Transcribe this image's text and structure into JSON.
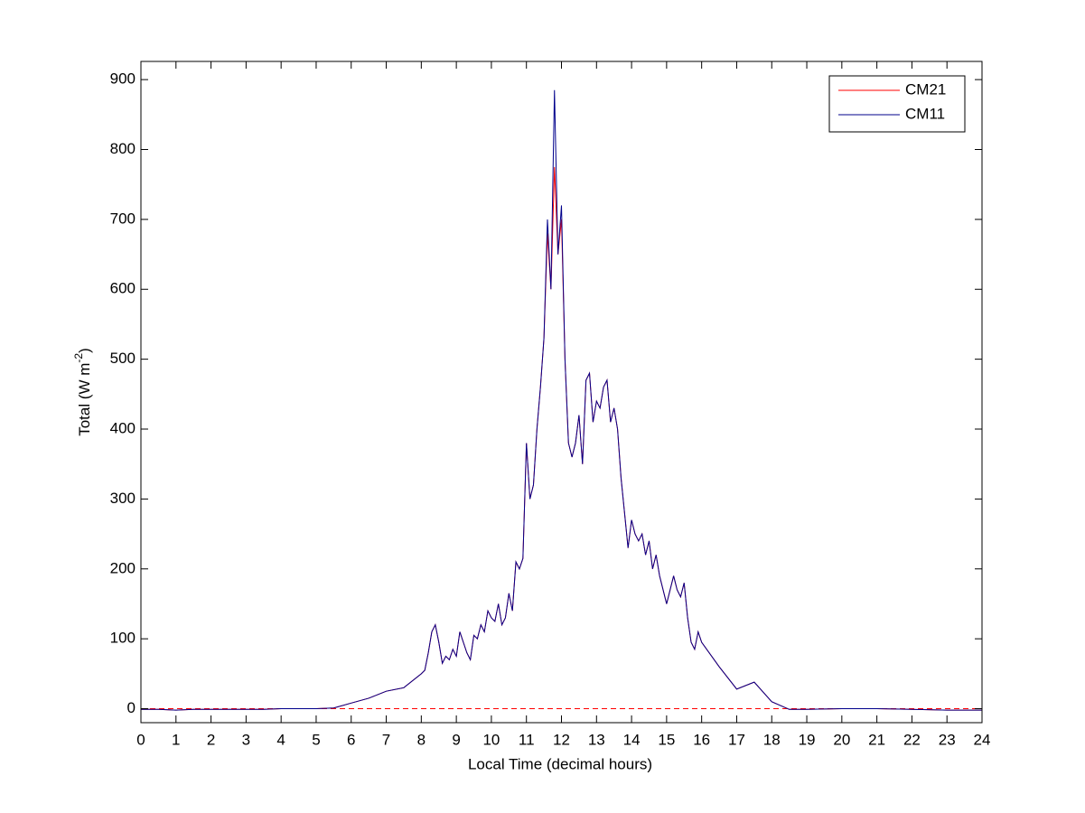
{
  "chart_data": {
    "type": "line",
    "xlabel": "Local Time (decimal hours)",
    "ylabel": [
      "Total (W m",
      "-2",
      ")"
    ],
    "x": [
      0,
      0.5,
      1,
      1.5,
      2,
      2.5,
      3,
      3.5,
      4,
      4.5,
      5,
      5.5,
      6,
      6.5,
      7,
      7.5,
      8,
      8.1,
      8.2,
      8.3,
      8.4,
      8.5,
      8.6,
      8.7,
      8.8,
      8.9,
      9,
      9.1,
      9.2,
      9.3,
      9.4,
      9.5,
      9.6,
      9.7,
      9.8,
      9.9,
      10,
      10.1,
      10.2,
      10.3,
      10.4,
      10.5,
      10.6,
      10.7,
      10.8,
      10.9,
      11,
      11.1,
      11.2,
      11.3,
      11.4,
      11.5,
      11.6,
      11.7,
      11.8,
      11.9,
      12,
      12.1,
      12.2,
      12.3,
      12.4,
      12.5,
      12.6,
      12.7,
      12.8,
      12.9,
      13,
      13.1,
      13.2,
      13.3,
      13.4,
      13.5,
      13.6,
      13.7,
      13.8,
      13.9,
      14,
      14.1,
      14.2,
      14.3,
      14.4,
      14.5,
      14.6,
      14.7,
      14.8,
      14.9,
      15,
      15.1,
      15.2,
      15.3,
      15.4,
      15.5,
      15.6,
      15.7,
      15.8,
      15.9,
      16,
      16.5,
      17,
      17.5,
      18,
      18.5,
      19,
      20,
      21,
      22,
      23,
      24
    ],
    "series": [
      {
        "name": "CM21",
        "color": "#ff0000",
        "values": [
          -1,
          -1,
          -2,
          -1,
          -1,
          -1,
          -1,
          -1,
          0,
          0,
          0,
          1,
          8,
          15,
          25,
          30,
          50,
          55,
          80,
          110,
          120,
          95,
          65,
          75,
          70,
          85,
          75,
          110,
          95,
          80,
          70,
          105,
          100,
          120,
          110,
          140,
          130,
          125,
          150,
          120,
          130,
          165,
          140,
          210,
          200,
          215,
          380,
          300,
          320,
          400,
          460,
          530,
          680,
          600,
          775,
          650,
          700,
          500,
          380,
          360,
          380,
          420,
          350,
          470,
          480,
          410,
          440,
          430,
          460,
          470,
          410,
          430,
          400,
          330,
          280,
          230,
          270,
          250,
          240,
          250,
          220,
          240,
          200,
          220,
          190,
          170,
          150,
          170,
          190,
          170,
          160,
          180,
          130,
          95,
          85,
          110,
          95,
          60,
          28,
          38,
          10,
          -1,
          -1,
          0,
          0,
          -1,
          -2,
          -2
        ]
      },
      {
        "name": "CM11",
        "color": "#00008b",
        "values": [
          -1,
          -1,
          -2,
          -1,
          -1,
          -1,
          -1,
          -1,
          0,
          0,
          0,
          1,
          8,
          15,
          25,
          30,
          50,
          55,
          80,
          110,
          120,
          95,
          65,
          75,
          70,
          85,
          75,
          110,
          95,
          80,
          70,
          105,
          100,
          120,
          110,
          140,
          130,
          125,
          150,
          120,
          130,
          165,
          140,
          210,
          200,
          215,
          380,
          300,
          320,
          400,
          460,
          530,
          700,
          600,
          885,
          650,
          720,
          500,
          380,
          360,
          380,
          420,
          350,
          470,
          480,
          410,
          440,
          430,
          460,
          470,
          410,
          430,
          400,
          330,
          280,
          230,
          270,
          250,
          240,
          250,
          220,
          240,
          200,
          220,
          190,
          170,
          150,
          170,
          190,
          170,
          160,
          180,
          130,
          95,
          85,
          110,
          95,
          60,
          28,
          38,
          10,
          -1,
          -1,
          0,
          0,
          -1,
          -2,
          -2
        ]
      }
    ],
    "reference_lines": [
      {
        "value": 0,
        "color": "#ff0000",
        "dashed": true
      }
    ],
    "xlim": [
      0,
      24
    ],
    "xticks": [
      0,
      1,
      2,
      3,
      4,
      5,
      6,
      7,
      8,
      9,
      10,
      11,
      12,
      13,
      14,
      15,
      16,
      17,
      18,
      19,
      20,
      21,
      22,
      23,
      24
    ],
    "ylim": [
      -20,
      926
    ],
    "yticks": [
      0,
      100,
      200,
      300,
      400,
      500,
      600,
      700,
      800,
      900
    ],
    "grid": false,
    "legend": "northeast"
  }
}
